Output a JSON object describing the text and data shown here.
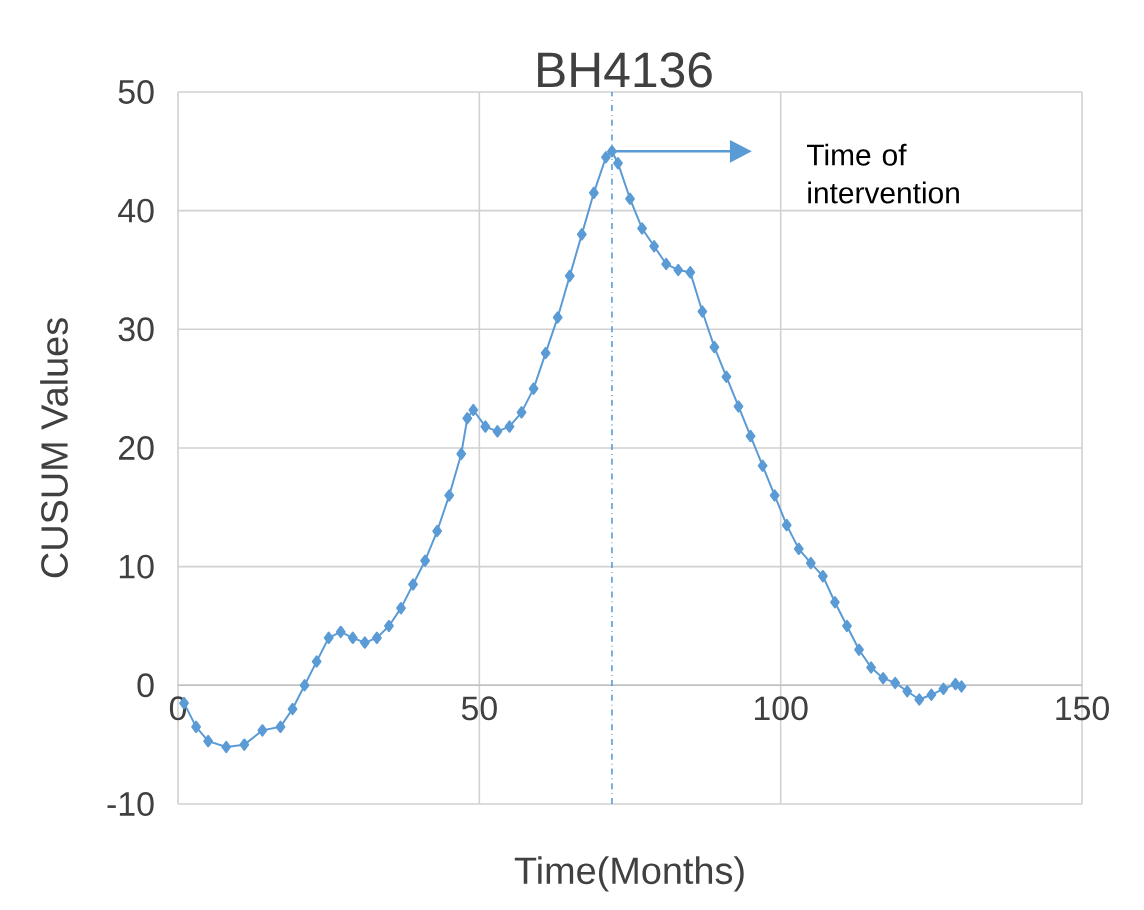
{
  "chart_data": {
    "type": "line",
    "title": "BH4136",
    "xlabel": "Time(Months)",
    "ylabel": "CUSUM Values",
    "series": [
      {
        "color": "#5b9bd5",
        "x": [
          1,
          3,
          5,
          8,
          11,
          14,
          17,
          19,
          21,
          23,
          25,
          27,
          29,
          31,
          33,
          35,
          37,
          39,
          41,
          43,
          45,
          47,
          48,
          49,
          51,
          53,
          55,
          57,
          59,
          61,
          63,
          65,
          67,
          69,
          71,
          72,
          73,
          75,
          77,
          79,
          81,
          83,
          85,
          87,
          89,
          91,
          93,
          95,
          97,
          99,
          101,
          103,
          105,
          107,
          109,
          111,
          113,
          115,
          117,
          119,
          121,
          123,
          125,
          127,
          129,
          130
        ],
        "values": [
          -1.5,
          -3.5,
          -4.7,
          -5.2,
          -5,
          -3.8,
          -3.5,
          -2,
          0,
          2,
          4,
          4.5,
          4,
          3.6,
          4,
          5,
          6.5,
          8.5,
          10.5,
          13,
          16,
          19.5,
          22.5,
          23.2,
          21.8,
          21.4,
          21.8,
          23,
          25,
          28,
          31,
          34.5,
          38,
          41.5,
          44.5,
          45,
          44,
          41,
          38.5,
          37,
          35.5,
          35,
          34.8,
          31.5,
          28.5,
          26,
          23.5,
          21,
          18.5,
          16,
          13.5,
          11.5,
          10.3,
          9.2,
          7,
          5,
          3,
          1.5,
          0.6,
          0.2,
          -0.5,
          -1.2,
          -0.8,
          -0.3,
          0.1,
          -0.1
        ]
      }
    ],
    "xlim": [
      0,
      150
    ],
    "ylim": [
      -10,
      50
    ],
    "xticks": [
      0,
      50,
      100,
      150
    ],
    "yticks": [
      -10,
      0,
      10,
      20,
      30,
      40,
      50
    ],
    "grid": true,
    "marker": "diamond",
    "line_style": "solid",
    "ref_lines": [
      {
        "axis": "x",
        "value": 72,
        "color": "#5b9bd5",
        "line_style": "dashdotted"
      }
    ],
    "annotations": [
      "Time of intervention"
    ]
  }
}
